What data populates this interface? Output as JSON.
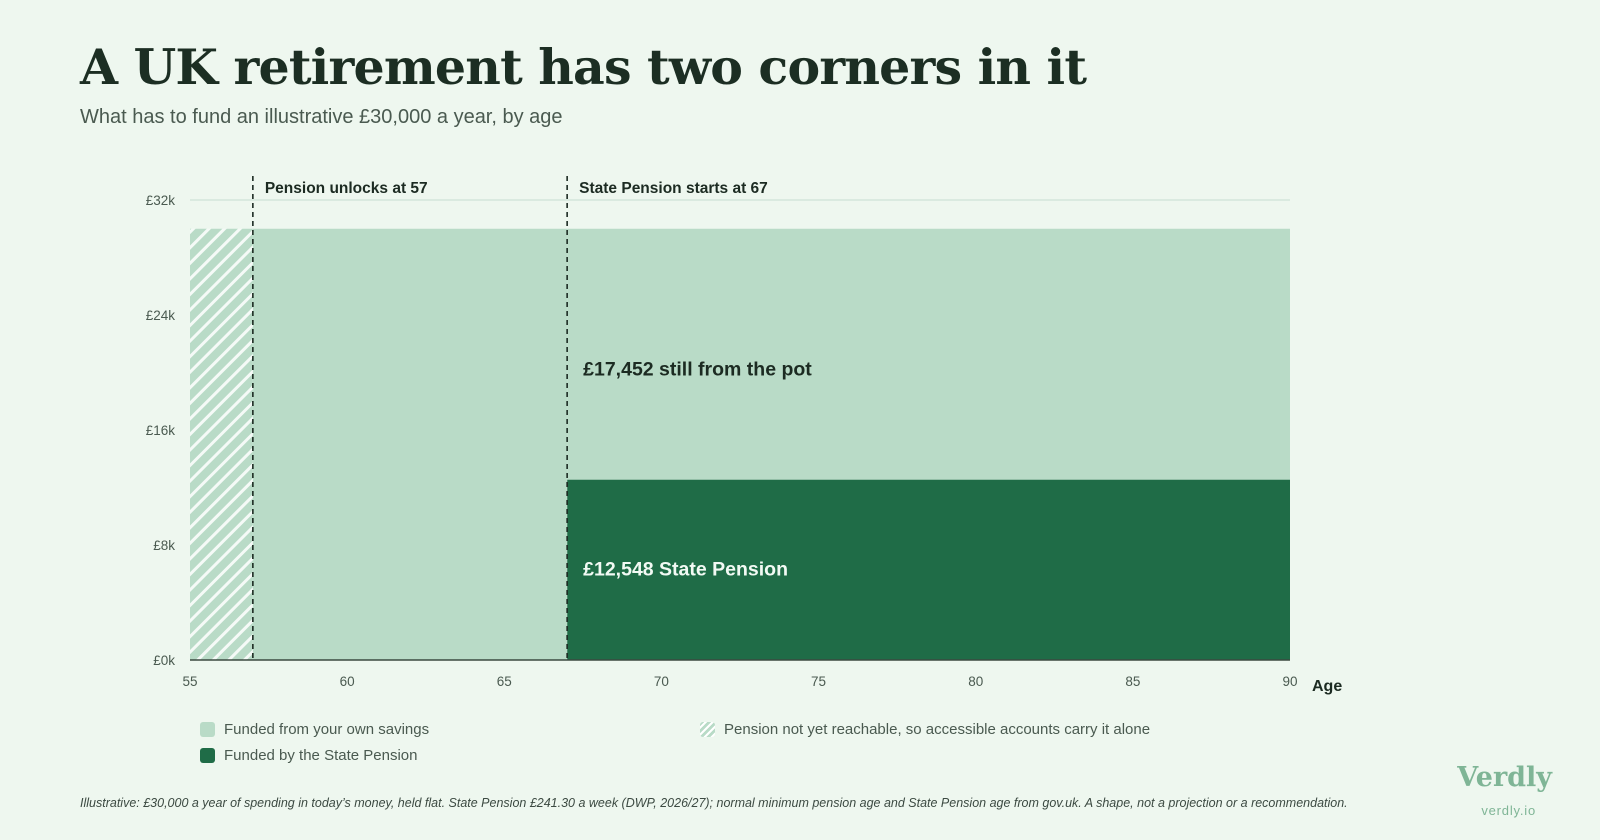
{
  "header": {
    "title": "A UK retirement has two corners in it",
    "subtitle": "What has to fund an illustrative £30,000 a year, by age"
  },
  "colors": {
    "background": "#eef7ef",
    "savings": "#b9dbc7",
    "state_pension": "#1f6c47",
    "text": "#1c2b22",
    "brand": "#7fb596"
  },
  "chart_data": {
    "type": "area",
    "xlabel": "Age",
    "ylabel": "",
    "xlim": [
      55,
      90
    ],
    "ylim": [
      0,
      32000
    ],
    "x_ticks": [
      55,
      60,
      65,
      70,
      75,
      80,
      85,
      90
    ],
    "x_tick_labels": [
      "55",
      "60",
      "65",
      "70",
      "75",
      "80",
      "85",
      "90"
    ],
    "y_ticks": [
      0,
      8000,
      16000,
      24000,
      32000
    ],
    "y_tick_labels": [
      "£0k",
      "£8k",
      "£16k",
      "£24k",
      "£32k"
    ],
    "grid": "horizontal",
    "total_spending": 30000,
    "series": [
      {
        "name": "Funded from your own savings",
        "segments": [
          {
            "x_start": 55,
            "x_end": 57,
            "value": 30000,
            "hatched": true
          },
          {
            "x_start": 57,
            "x_end": 67,
            "value": 30000,
            "hatched": false
          },
          {
            "x_start": 67,
            "x_end": 90,
            "value": 17452,
            "hatched": false
          }
        ]
      },
      {
        "name": "Funded by the State Pension",
        "segments": [
          {
            "x_start": 67,
            "x_end": 90,
            "value": 12548
          }
        ]
      }
    ],
    "markers": [
      {
        "x": 57,
        "label": "Pension unlocks at 57"
      },
      {
        "x": 67,
        "label": "State Pension starts at 67"
      }
    ],
    "annotations": [
      {
        "text": "£17,452 still from the pot",
        "x": 67,
        "y": 20200,
        "style": "dark"
      },
      {
        "text": "£12,548 State Pension",
        "x": 67,
        "y": 6300,
        "style": "light"
      }
    ]
  },
  "legend": {
    "savings": "Funded from your own savings",
    "state": "Funded by the State Pension",
    "hatch": "Pension not yet reachable, so accessible accounts carry it alone"
  },
  "footnote": "Illustrative: £30,000 a year of spending in today’s money, held flat. State Pension £241.30 a week (DWP, 2026/27); normal minimum pension age and State Pension age from gov.uk. A shape, not a projection or a recommendation.",
  "brand": {
    "name": "Verdly",
    "url": "verdly.io"
  }
}
